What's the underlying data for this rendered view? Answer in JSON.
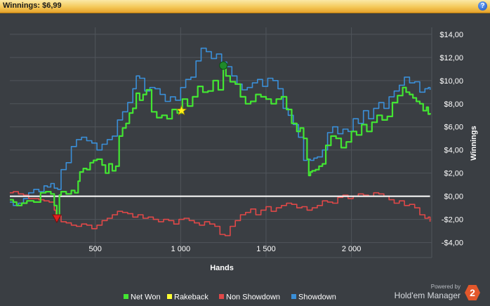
{
  "window": {
    "title": "Winnings: $6,99",
    "help_label": "?"
  },
  "brand": {
    "powered_by": "Powered by",
    "name": "Hold'em Manager",
    "logo_number": "2"
  },
  "colors": {
    "background": "#3a3e43",
    "grid": "#50555b",
    "net_won": "#43e632",
    "rakeback": "#ffff33",
    "non_showdown": "#e04848",
    "showdown": "#3a8fd8",
    "zero_line": "#ffffff",
    "axis_text": "#ffffff",
    "star_marker": "#ffef1a",
    "max_marker": "#1f8a2a",
    "min_marker": "#e02020"
  },
  "chart_data": {
    "type": "line",
    "title": "",
    "xlabel": "Hands",
    "ylabel": "Winnings",
    "xlim": [
      0,
      2470
    ],
    "ylim": [
      -5.3,
      14.6
    ],
    "y_axis_side": "right",
    "x_ticks": [
      {
        "value": 500,
        "label": "500"
      },
      {
        "value": 1000,
        "label": "1 000"
      },
      {
        "value": 1500,
        "label": "1 500"
      },
      {
        "value": 2000,
        "label": "2 000"
      }
    ],
    "y_ticks": [
      {
        "value": 14,
        "label": "$14,00"
      },
      {
        "value": 12,
        "label": "$12,00"
      },
      {
        "value": 10,
        "label": "$10,00"
      },
      {
        "value": 8,
        "label": "$8,00"
      },
      {
        "value": 6,
        "label": "$6,00"
      },
      {
        "value": 4,
        "label": "$4,00"
      },
      {
        "value": 2,
        "label": "$2,00"
      },
      {
        "value": 0,
        "label": "$0,00"
      },
      {
        "value": -2,
        "label": "-$2,00"
      },
      {
        "value": -4,
        "label": "-$4,00"
      }
    ],
    "grid": true,
    "legend_position": "bottom-center",
    "series": [
      {
        "name": "Net Won",
        "color": "#43e632",
        "x": [
          0,
          20,
          40,
          70,
          100,
          140,
          180,
          210,
          240,
          260,
          275,
          290,
          300,
          330,
          360,
          380,
          400,
          410,
          430,
          450,
          470,
          490,
          510,
          540,
          560,
          580,
          600,
          620,
          640,
          660,
          680,
          700,
          720,
          740,
          760,
          780,
          800,
          830,
          860,
          890,
          920,
          950,
          980,
          1010,
          1040,
          1070,
          1100,
          1130,
          1160,
          1190,
          1220,
          1250,
          1265,
          1290,
          1320,
          1350,
          1380,
          1410,
          1440,
          1470,
          1500,
          1530,
          1560,
          1590,
          1620,
          1650,
          1680,
          1700,
          1720,
          1740,
          1750,
          1760,
          1770,
          1790,
          1810,
          1830,
          1850,
          1880,
          1910,
          1940,
          1970,
          2000,
          2030,
          2060,
          2090,
          2120,
          2150,
          2180,
          2210,
          2240,
          2270,
          2300,
          2320,
          2340,
          2360,
          2380,
          2400,
          2420,
          2440,
          2450,
          2460
        ],
        "values": [
          -0.3,
          -0.5,
          -0.8,
          -0.6,
          -0.4,
          -0.5,
          0.3,
          0.4,
          0.2,
          -0.8,
          -1.7,
          0.1,
          0.4,
          0.2,
          0.5,
          0.3,
          1.3,
          2.1,
          2.4,
          2.3,
          2.9,
          3.1,
          3.2,
          2.7,
          2.0,
          2.8,
          2.2,
          2.6,
          5.2,
          5.9,
          6.3,
          7.2,
          7.6,
          8.9,
          8.3,
          8.8,
          9.2,
          7.3,
          6.8,
          7.0,
          6.7,
          7.5,
          7.2,
          8.4,
          7.8,
          8.6,
          9.5,
          9.0,
          9.1,
          10.0,
          9.2,
          11.0,
          10.4,
          9.9,
          9.7,
          8.6,
          8.0,
          8.2,
          8.8,
          8.6,
          8.4,
          8.0,
          8.4,
          8.6,
          7.5,
          6.3,
          5.6,
          5.9,
          5.0,
          3.2,
          1.8,
          2.1,
          2.2,
          2.3,
          2.6,
          2.8,
          4.4,
          5.2,
          5.0,
          4.2,
          4.7,
          5.6,
          5.3,
          6.2,
          5.6,
          6.4,
          7.0,
          6.6,
          6.9,
          8.1,
          8.7,
          9.4,
          9.0,
          8.8,
          8.5,
          8.2,
          8.0,
          7.4,
          7.7,
          7.1,
          7.2
        ]
      },
      {
        "name": "Rakeback",
        "color": "#ffff33",
        "x": [
          0,
          2460
        ],
        "values": [
          0,
          0
        ]
      },
      {
        "name": "Non Showdown",
        "color": "#e04848",
        "x": [
          0,
          20,
          50,
          80,
          110,
          140,
          170,
          200,
          230,
          260,
          270,
          285,
          300,
          330,
          360,
          390,
          420,
          450,
          480,
          510,
          540,
          570,
          600,
          630,
          660,
          690,
          720,
          750,
          780,
          810,
          840,
          870,
          900,
          930,
          960,
          990,
          1020,
          1050,
          1080,
          1110,
          1140,
          1170,
          1200,
          1230,
          1260,
          1290,
          1320,
          1350,
          1380,
          1410,
          1440,
          1470,
          1500,
          1530,
          1560,
          1590,
          1620,
          1650,
          1680,
          1710,
          1740,
          1770,
          1800,
          1830,
          1860,
          1890,
          1920,
          1950,
          1980,
          2010,
          2040,
          2070,
          2100,
          2130,
          2160,
          2190,
          2220,
          2250,
          2280,
          2310,
          2340,
          2370,
          2400,
          2430,
          2450,
          2460
        ],
        "values": [
          0.3,
          0.4,
          0.2,
          0.1,
          -0.2,
          -0.2,
          -0.3,
          -0.4,
          -0.5,
          -1.2,
          -1.8,
          -1.7,
          -2.2,
          -2.3,
          -2.5,
          -2.6,
          -2.4,
          -2.5,
          -2.8,
          -2.5,
          -2.1,
          -1.9,
          -1.6,
          -1.3,
          -1.4,
          -1.5,
          -1.8,
          -1.6,
          -1.9,
          -1.8,
          -2.0,
          -2.2,
          -2.0,
          -2.1,
          -2.4,
          -2.0,
          -1.9,
          -2.1,
          -2.3,
          -2.5,
          -2.2,
          -2.4,
          -2.6,
          -3.3,
          -3.4,
          -2.6,
          -2.1,
          -1.6,
          -1.4,
          -1.1,
          -1.6,
          -1.2,
          -0.9,
          -1.3,
          -1.0,
          -0.8,
          -0.6,
          -0.7,
          -1.0,
          -0.9,
          -1.2,
          -1.0,
          -0.8,
          -0.4,
          -0.5,
          -0.6,
          -0.1,
          0.1,
          -0.2,
          0.0,
          0.2,
          0.1,
          0.0,
          0.3,
          0.2,
          0.0,
          -0.3,
          -0.6,
          -0.4,
          -0.8,
          -0.7,
          -1.0,
          -1.6,
          -1.9,
          -1.8,
          -2.2
        ]
      },
      {
        "name": "Showdown",
        "color": "#3a8fd8",
        "x": [
          0,
          20,
          50,
          80,
          110,
          140,
          170,
          200,
          220,
          240,
          260,
          280,
          300,
          330,
          360,
          390,
          420,
          450,
          480,
          510,
          540,
          570,
          600,
          630,
          660,
          690,
          720,
          740,
          760,
          790,
          820,
          850,
          880,
          910,
          940,
          970,
          1000,
          1030,
          1060,
          1090,
          1120,
          1150,
          1180,
          1210,
          1240,
          1270,
          1300,
          1330,
          1360,
          1390,
          1420,
          1450,
          1480,
          1510,
          1540,
          1570,
          1600,
          1630,
          1660,
          1690,
          1720,
          1740,
          1760,
          1780,
          1800,
          1830,
          1860,
          1890,
          1920,
          1950,
          1980,
          2010,
          2040,
          2070,
          2100,
          2130,
          2160,
          2190,
          2220,
          2250,
          2280,
          2310,
          2340,
          2370,
          2400,
          2430,
          2450,
          2460
        ],
        "values": [
          -0.5,
          -0.8,
          -0.6,
          -0.2,
          0.3,
          0.6,
          0.4,
          0.9,
          0.8,
          1.1,
          0.7,
          0.6,
          2.3,
          2.9,
          4.3,
          4.9,
          5.1,
          4.8,
          4.6,
          4.0,
          4.5,
          4.9,
          5.2,
          6.6,
          7.3,
          8.1,
          9.3,
          10.4,
          10.2,
          9.1,
          9.4,
          9.3,
          8.8,
          8.2,
          8.6,
          8.3,
          9.4,
          10.1,
          10.3,
          11.7,
          12.8,
          12.5,
          11.9,
          12.3,
          11.6,
          11.2,
          10.4,
          9.7,
          9.2,
          9.4,
          9.8,
          10.1,
          9.5,
          10.2,
          10.0,
          9.3,
          7.6,
          7.0,
          6.2,
          5.1,
          3.1,
          3.2,
          3.1,
          3.3,
          3.4,
          4.0,
          5.5,
          6.0,
          5.4,
          5.8,
          5.6,
          6.7,
          6.3,
          7.4,
          6.7,
          7.6,
          8.1,
          7.6,
          8.6,
          9.1,
          9.6,
          10.3,
          9.8,
          9.9,
          9.0,
          9.3,
          9.4,
          9.2
        ]
      }
    ],
    "markers": [
      {
        "name": "max-marker",
        "shape": "circle",
        "x": 1250,
        "y": 11.3,
        "color": "#1f8a2a"
      },
      {
        "name": "min-marker",
        "shape": "triangle-down",
        "x": 275,
        "y": -1.9,
        "color": "#e02020"
      },
      {
        "name": "star-marker",
        "shape": "star",
        "x": 1005,
        "y": 7.4,
        "color": "#ffef1a"
      }
    ]
  }
}
